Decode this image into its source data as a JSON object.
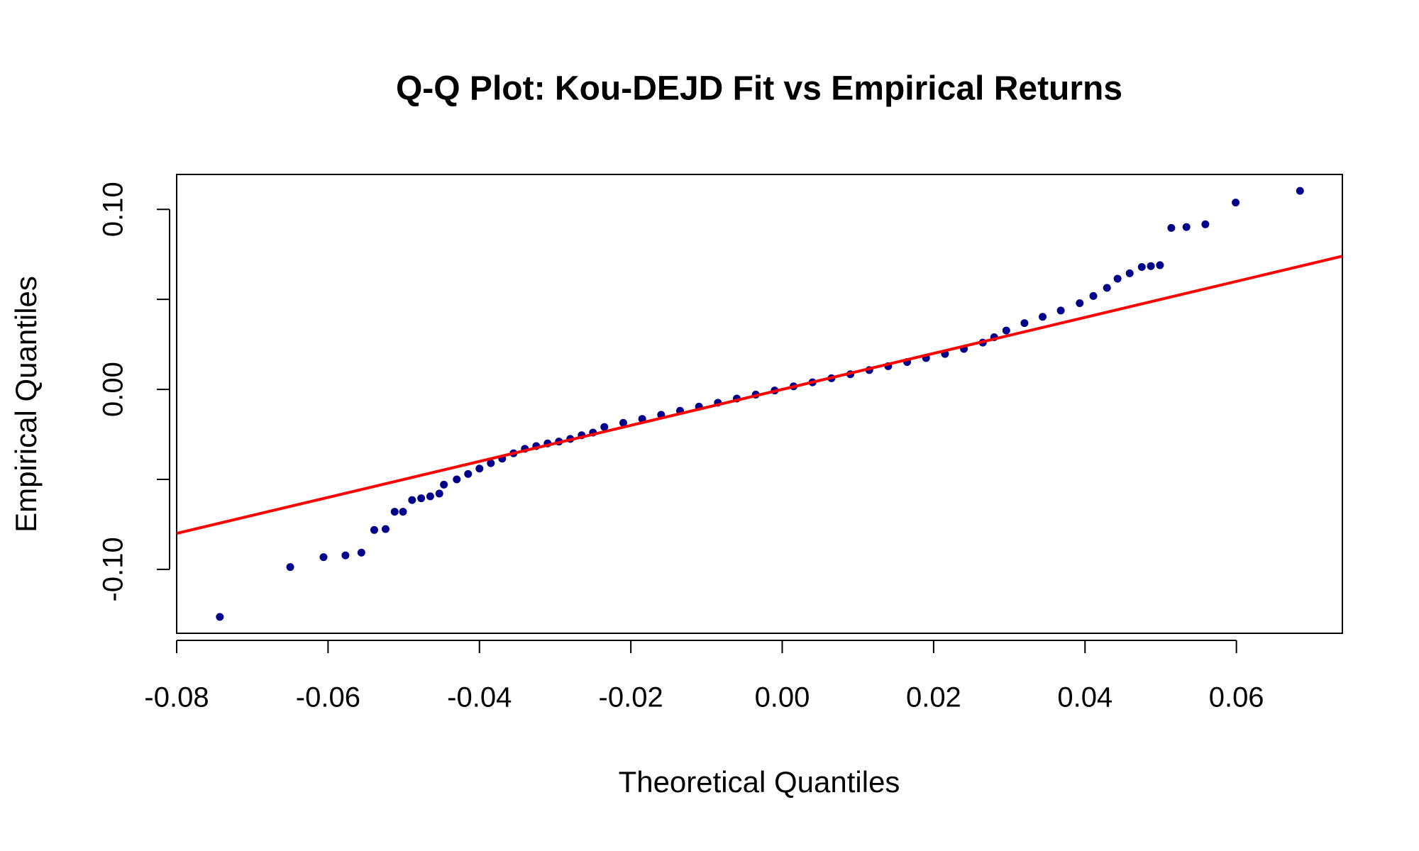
{
  "chart_data": {
    "type": "scatter",
    "title": "Q-Q Plot: Kou-DEJD Fit vs Empirical Returns",
    "xlabel": "Theoretical Quantiles",
    "ylabel": "Empirical Quantiles",
    "color": "#00008b",
    "x": [
      -0.0743,
      -0.065,
      -0.0606,
      -0.0577,
      -0.0556,
      -0.0539,
      -0.0524,
      -0.0512,
      -0.0501,
      -0.0489,
      -0.0477,
      -0.0465,
      -0.0453,
      -0.0447,
      -0.043,
      -0.0415,
      -0.04,
      -0.0385,
      -0.037,
      -0.0355,
      -0.034,
      -0.0325,
      -0.031,
      -0.0295,
      -0.028,
      -0.0265,
      -0.025,
      -0.0235,
      -0.021,
      -0.0185,
      -0.016,
      -0.0135,
      -0.011,
      -0.0085,
      -0.006,
      -0.0035,
      -0.001,
      0.0015,
      0.004,
      0.0065,
      0.009,
      0.0115,
      0.014,
      0.0165,
      0.019,
      0.0215,
      0.024,
      0.0265,
      0.028,
      0.0296,
      0.032,
      0.0344,
      0.0368,
      0.0393,
      0.0411,
      0.0429,
      0.0443,
      0.0459,
      0.0475,
      0.0487,
      0.0499,
      0.0514,
      0.0534,
      0.0559,
      0.0599,
      0.0684
    ],
    "values": [
      -0.1264,
      -0.0987,
      -0.0932,
      -0.0922,
      -0.0907,
      -0.0781,
      -0.0776,
      -0.068,
      -0.068,
      -0.0615,
      -0.0605,
      -0.0594,
      -0.0579,
      -0.0529,
      -0.05,
      -0.047,
      -0.044,
      -0.041,
      -0.0385,
      -0.0355,
      -0.033,
      -0.0315,
      -0.03,
      -0.029,
      -0.0275,
      -0.0255,
      -0.024,
      -0.0209,
      -0.0186,
      -0.0164,
      -0.0141,
      -0.0119,
      -0.0096,
      -0.0074,
      -0.0051,
      -0.0029,
      -0.0006,
      0.0017,
      0.0039,
      0.0062,
      0.0084,
      0.0107,
      0.0129,
      0.0152,
      0.0174,
      0.0197,
      0.0225,
      0.026,
      0.029,
      0.0327,
      0.0368,
      0.0403,
      0.0438,
      0.0479,
      0.0519,
      0.0564,
      0.0615,
      0.0645,
      0.068,
      0.0685,
      0.069,
      0.0897,
      0.0902,
      0.0917,
      0.1038,
      0.1103
    ],
    "reference_line": {
      "intercept": 0,
      "slope": 1,
      "color": "#ff0000"
    },
    "xlim": [
      -0.08,
      0.074
    ],
    "ylim": [
      -0.1355,
      0.1194
    ],
    "xticks": [
      {
        "value": -0.08,
        "label": "-0.08"
      },
      {
        "value": -0.06,
        "label": "-0.06"
      },
      {
        "value": -0.04,
        "label": "-0.04"
      },
      {
        "value": -0.02,
        "label": "-0.02"
      },
      {
        "value": 0,
        "label": "0.00"
      },
      {
        "value": 0.02,
        "label": "0.02"
      },
      {
        "value": 0.04,
        "label": "0.04"
      },
      {
        "value": 0.06,
        "label": "0.06"
      }
    ],
    "yticks": [
      {
        "value": -0.1,
        "label": "-0.10"
      },
      {
        "value": -0.05,
        "label": null
      },
      {
        "value": 0,
        "label": "0.00"
      },
      {
        "value": 0.05,
        "label": null
      },
      {
        "value": 0.1,
        "label": "0.10"
      }
    ]
  }
}
